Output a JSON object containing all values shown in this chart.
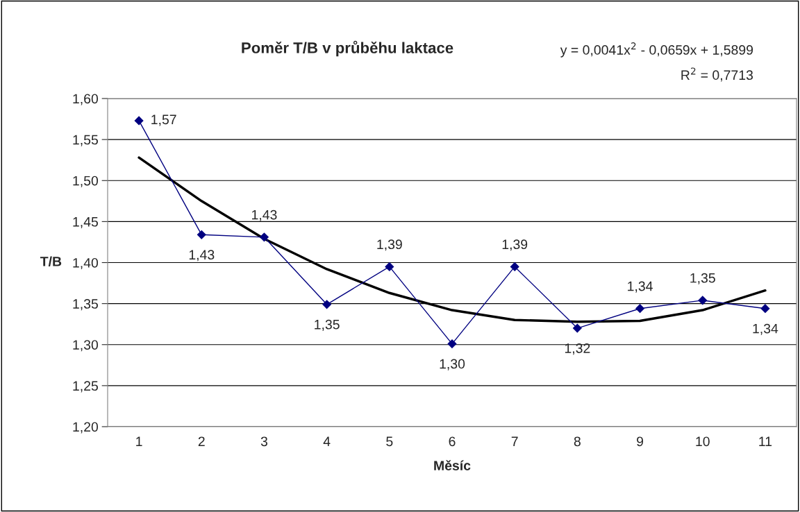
{
  "chart_data": {
    "type": "line",
    "title": "Poměr T/B v průběhu laktace",
    "xlabel": "Měsíc",
    "ylabel": "T/B",
    "annotations": [
      "y = 0,0041x$^{2}$ - 0,0659x + 1,5899",
      "R$^{2}$ = 0,7713"
    ],
    "categories": [
      "1",
      "2",
      "3",
      "4",
      "5",
      "6",
      "7",
      "8",
      "9",
      "10",
      "11"
    ],
    "series": [
      {
        "color": "#000080",
        "marker": "diamond",
        "values": [
          1.573,
          1.434,
          1.431,
          1.349,
          1.395,
          1.301,
          1.395,
          1.32,
          1.344,
          1.354,
          1.344
        ],
        "value_labels": [
          "1,57",
          "1,43",
          "1,43",
          "1,35",
          "1,39",
          "1,30",
          "1,39",
          "1,32",
          "1,34",
          "1,35",
          "1,34"
        ]
      },
      {
        "color": "#000000",
        "marker": "none",
        "values": [
          1.528,
          1.475,
          1.429,
          1.392,
          1.363,
          1.342,
          1.33,
          1.328,
          1.329,
          1.342,
          1.366
        ]
      }
    ],
    "ylim": [
      1.2,
      1.6
    ],
    "yticks": [
      {
        "value": 1.2,
        "label": "1,20"
      },
      {
        "value": 1.25,
        "label": "1,25"
      },
      {
        "value": 1.3,
        "label": "1,30"
      },
      {
        "value": 1.35,
        "label": "1,35"
      },
      {
        "value": 1.4,
        "label": "1,40"
      },
      {
        "value": 1.45,
        "label": "1,45"
      },
      {
        "value": 1.5,
        "label": "1,50"
      },
      {
        "value": 1.55,
        "label": "1,55"
      },
      {
        "value": 1.6,
        "label": "1,60"
      }
    ],
    "grid": "y",
    "legend": false
  }
}
